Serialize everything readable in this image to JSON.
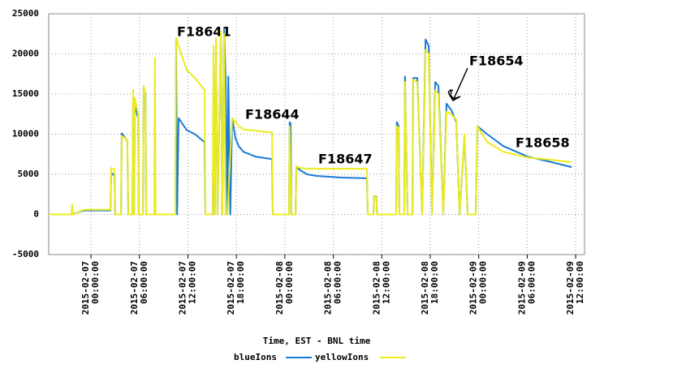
{
  "chart_data": {
    "type": "line",
    "xlabel": "Time, EST - BNL time",
    "annotations": [
      "F18641",
      "F18644",
      "F18647",
      "F18654",
      "F18658"
    ],
    "xlim": [
      "2015-02-06 18:46",
      "2015-02-09 13:06"
    ],
    "xticks": [
      "2015-02-07 00:00:00",
      "2015-02-07 06:00:00",
      "2015-02-07 12:00:00",
      "2015-02-07 18:00:00",
      "2015-02-08 00:00:00",
      "2015-02-08 06:00:00",
      "2015-02-08 12:00:00",
      "2015-02-08 18:00:00",
      "2015-02-09 00:00:00",
      "2015-02-09 06:00:00",
      "2015-02-09 12:00:00"
    ],
    "ylim": [
      -5000,
      25000
    ],
    "yticks": [
      -5000,
      0,
      5000,
      10000,
      15000,
      20000,
      25000
    ],
    "grid": true,
    "series": [
      {
        "name": "blueIons",
        "color": "#1a7ad6",
        "x": [
          "2015-02-06 18:46",
          "2015-02-06 21:35",
          "2015-02-06 23:12",
          "2015-02-07 02:25",
          "2015-02-07 02:30",
          "2015-02-07 02:55",
          "2015-02-07 03:00",
          "2015-02-07 03:43",
          "2015-02-07 03:48",
          "2015-02-07 04:30",
          "2015-02-07 04:37",
          "2015-02-07 05:08",
          "2015-02-07 05:13",
          "2015-02-07 05:20",
          "2015-02-07 05:26",
          "2015-02-07 05:50",
          "2015-02-07 05:55",
          "2015-02-07 06:26",
          "2015-02-07 06:31",
          "2015-02-07 06:45",
          "2015-02-07 06:50",
          "2015-02-07 10:27",
          "2015-02-07 10:32",
          "2015-02-07 10:40",
          "2015-02-07 10:51",
          "2015-02-07 11:51",
          "2015-02-07 12:52",
          "2015-02-07 14:04",
          "2015-02-07 14:10",
          "2015-02-07 15:05",
          "2015-02-07 15:10",
          "2015-02-07 15:20",
          "2015-02-07 15:29",
          "2015-02-07 15:40",
          "2015-02-07 16:05",
          "2015-02-07 16:15",
          "2015-02-07 16:29",
          "2015-02-07 16:40",
          "2015-02-07 16:53",
          "2015-02-07 17:00",
          "2015-02-07 17:15",
          "2015-02-07 17:29",
          "2015-02-07 17:53",
          "2015-02-07 18:17",
          "2015-02-07 18:53",
          "2015-02-07 20:24",
          "2015-02-07 22:25",
          "2015-02-07 22:31",
          "2015-02-08 00:31",
          "2015-02-08 00:36",
          "2015-02-08 00:43",
          "2015-02-08 00:48",
          "2015-02-08 01:20",
          "2015-02-08 01:25",
          "2015-02-08 01:32",
          "2015-02-08 01:56",
          "2015-02-08 02:44",
          "2015-02-08 03:56",
          "2015-02-08 06:57",
          "2015-02-08 10:10",
          "2015-02-08 10:16",
          "2015-02-08 10:58",
          "2015-02-08 11:03",
          "2015-02-08 11:20",
          "2015-02-08 11:25",
          "2015-02-08 13:47",
          "2015-02-08 13:52",
          "2015-02-08 14:05",
          "2015-02-08 14:11",
          "2015-02-08 14:47",
          "2015-02-08 14:52",
          "2015-02-08 15:12",
          "2015-02-08 15:48",
          "2015-02-08 15:53",
          "2015-02-08 16:24",
          "2015-02-08 17:00",
          "2015-02-08 17:25",
          "2015-02-08 17:49",
          "2015-02-08 18:13",
          "2015-02-08 18:37",
          "2015-02-08 19:01",
          "2015-02-08 19:37",
          "2015-02-08 20:01",
          "2015-02-08 20:37",
          "2015-02-08 21:14",
          "2015-02-08 21:38",
          "2015-02-08 22:14",
          "2015-02-08 22:38",
          "2015-02-08 23:38",
          "2015-02-08 23:50",
          "2015-02-09 01:03",
          "2015-02-09 03:04",
          "2015-02-09 06:04",
          "2015-02-09 09:05",
          "2015-02-09 11:30"
        ],
        "values": [
          0,
          0,
          500,
          500,
          5200,
          4800,
          0,
          0,
          10100,
          9200,
          0,
          0,
          14800,
          0,
          13500,
          12000,
          0,
          0,
          15800,
          15000,
          0,
          0,
          21500,
          0,
          12000,
          10500,
          10000,
          9000,
          0,
          0,
          15000,
          0,
          21000,
          0,
          22500,
          0,
          23000,
          17000,
          0,
          17200,
          0,
          12000,
          9500,
          8500,
          7800,
          7200,
          6900,
          0,
          0,
          11500,
          11300,
          0,
          0,
          6000,
          5800,
          5500,
          5000,
          4800,
          4600,
          4500,
          0,
          0,
          2300,
          2200,
          0,
          0,
          11500,
          11000,
          0,
          0,
          17200,
          0,
          0,
          17000,
          17000,
          0,
          21800,
          21000,
          0,
          16500,
          16000,
          0,
          13800,
          13000,
          11500,
          0,
          9800,
          0,
          0,
          11000,
          10000,
          8500,
          7200,
          6500,
          5900
        ]
      },
      {
        "name": "yellowIons",
        "color": "#ecec1c",
        "x": [
          "2015-02-06 18:46",
          "2015-02-06 21:35",
          "2015-02-06 21:40",
          "2015-02-06 21:45",
          "2015-02-06 23:12",
          "2015-02-07 02:25",
          "2015-02-07 02:30",
          "2015-02-07 02:55",
          "2015-02-07 03:00",
          "2015-02-07 03:43",
          "2015-02-07 03:48",
          "2015-02-07 04:30",
          "2015-02-07 04:37",
          "2015-02-07 05:08",
          "2015-02-07 05:13",
          "2015-02-07 05:20",
          "2015-02-07 05:26",
          "2015-02-07 05:50",
          "2015-02-07 05:55",
          "2015-02-07 06:26",
          "2015-02-07 06:31",
          "2015-02-07 06:45",
          "2015-02-07 06:50",
          "2015-02-07 07:50",
          "2015-02-07 07:55",
          "2015-02-07 08:00",
          "2015-02-07 10:27",
          "2015-02-07 10:32",
          "2015-02-07 10:51",
          "2015-02-07 11:51",
          "2015-02-07 12:52",
          "2015-02-07 14:04",
          "2015-02-07 14:10",
          "2015-02-07 15:05",
          "2015-02-07 15:10",
          "2015-02-07 15:20",
          "2015-02-07 15:29",
          "2015-02-07 15:40",
          "2015-02-07 16:05",
          "2015-02-07 16:15",
          "2015-02-07 16:29",
          "2015-02-07 16:40",
          "2015-02-07 16:53",
          "2015-02-07 17:29",
          "2015-02-07 17:53",
          "2015-02-07 18:17",
          "2015-02-07 18:53",
          "2015-02-07 22:25",
          "2015-02-07 22:31",
          "2015-02-08 00:31",
          "2015-02-08 00:36",
          "2015-02-08 00:48",
          "2015-02-08 01:20",
          "2015-02-08 01:25",
          "2015-02-08 01:32",
          "2015-02-08 01:56",
          "2015-02-08 02:44",
          "2015-02-08 10:10",
          "2015-02-08 10:16",
          "2015-02-08 10:58",
          "2015-02-08 11:03",
          "2015-02-08 11:20",
          "2015-02-08 11:25",
          "2015-02-08 13:47",
          "2015-02-08 13:52",
          "2015-02-08 14:05",
          "2015-02-08 14:11",
          "2015-02-08 14:47",
          "2015-02-08 14:52",
          "2015-02-08 15:12",
          "2015-02-08 15:48",
          "2015-02-08 15:53",
          "2015-02-08 16:24",
          "2015-02-08 17:00",
          "2015-02-08 17:25",
          "2015-02-08 17:49",
          "2015-02-08 18:13",
          "2015-02-08 18:37",
          "2015-02-08 19:01",
          "2015-02-08 19:37",
          "2015-02-08 20:01",
          "2015-02-08 20:37",
          "2015-02-08 21:14",
          "2015-02-08 21:38",
          "2015-02-08 22:14",
          "2015-02-08 22:38",
          "2015-02-08 23:38",
          "2015-02-08 23:50",
          "2015-02-09 01:03",
          "2015-02-09 03:04",
          "2015-02-09 06:04",
          "2015-02-09 09:05",
          "2015-02-09 11:30"
        ],
        "values": [
          0,
          0,
          1200,
          0,
          600,
          600,
          5800,
          5600,
          0,
          0,
          9800,
          9300,
          0,
          0,
          15500,
          0,
          14500,
          12500,
          0,
          0,
          16000,
          14800,
          0,
          0,
          19500,
          0,
          0,
          22000,
          21000,
          18000,
          17000,
          15500,
          0,
          0,
          21000,
          0,
          22000,
          0,
          22800,
          0,
          22500,
          0,
          0,
          12000,
          11500,
          11000,
          10600,
          10200,
          0,
          0,
          11000,
          0,
          0,
          6000,
          5900,
          5800,
          5700,
          5700,
          0,
          0,
          2300,
          2100,
          0,
          0,
          11000,
          10800,
          0,
          0,
          16500,
          0,
          0,
          16800,
          16500,
          0,
          20500,
          20000,
          0,
          15500,
          15000,
          0,
          12800,
          12500,
          11800,
          0,
          10000,
          0,
          0,
          11000,
          9000,
          7800,
          7100,
          6800,
          6500
        ]
      }
    ]
  }
}
